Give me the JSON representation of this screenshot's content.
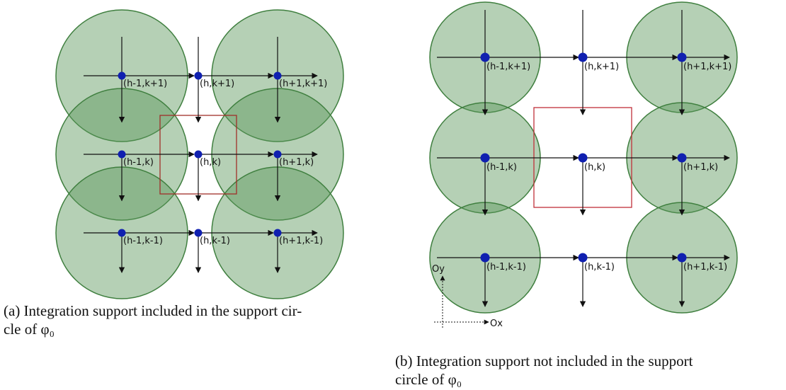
{
  "panels": [
    {
      "nodes": [
        "(h-1,k+1)",
        "(h,k+1)",
        "(h+1,k+1)",
        "(h-1,k)",
        "(h,k)",
        "(h+1,k)",
        "(h-1,k-1)",
        "(h,k-1)",
        "(h+1,k-1)"
      ],
      "caption": [
        "(a) Integration support included in the support cir-",
        "cle of φ₀"
      ]
    },
    {
      "nodes": [
        "(h-1,k+1)",
        "(h,k+1)",
        "(h+1,k+1)",
        "(h-1,k)",
        "(h,k)",
        "(h+1,k)",
        "(h-1,k-1)",
        "(h,k-1)",
        "(h+1,k-1)"
      ],
      "axes": {
        "x": "Ox",
        "y": "Oy"
      },
      "caption": [
        "(b) Integration support not included in the support",
        "circle of φ₀"
      ]
    }
  ]
}
